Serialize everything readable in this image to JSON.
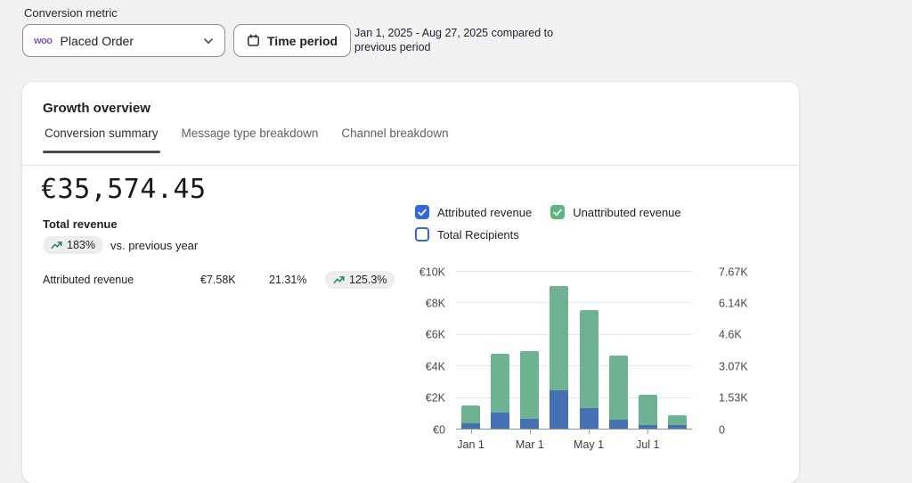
{
  "colors": {
    "page_bg": "#f0f1f3",
    "accent_checkbox_blue": "#3767e0",
    "accent_checkbox_green": "#5cb57f",
    "bar_blue": "#4471b5",
    "bar_green": "#6db392",
    "trend_green": "#148a4d"
  },
  "toolbar": {
    "label": "Conversion metric",
    "metric_dropdown": {
      "badge": "woo",
      "value": "Placed Order"
    },
    "time_period_button": "Time period",
    "date_range": "Jan 1, 2025 - Aug 27, 2025 compared to previous period"
  },
  "card": {
    "title": "Growth overview",
    "tabs": [
      {
        "label": "Conversion summary"
      },
      {
        "label": "Message type breakdown"
      },
      {
        "label": "Channel breakdown"
      }
    ],
    "summary": {
      "total_value": "€35,574.45",
      "total_label": "Total revenue",
      "change_pct": "183%",
      "change_context": "vs. previous year",
      "metric_row": {
        "label": "Attributed revenue",
        "value": "€7.58K",
        "pct": "21.31%",
        "change": "125.3%"
      }
    },
    "legend": [
      {
        "label": "Attributed revenue",
        "checked": true,
        "color": "#3767e0"
      },
      {
        "label": "Unattributed revenue",
        "checked": true,
        "color": "#5cb57f"
      },
      {
        "label": "Total Recipients",
        "checked": false,
        "color": "#3767e0"
      }
    ]
  },
  "chart_data": {
    "type": "bar",
    "stacked": true,
    "title": "",
    "xlabel": "",
    "ylabel": "",
    "categories": [
      "Jan 1",
      "Feb 1",
      "Mar 1",
      "Apr 1",
      "May 1",
      "Jun 1",
      "Jul 1",
      "Aug 1"
    ],
    "series": [
      {
        "name": "Attributed revenue",
        "color": "#4471b5",
        "values": [
          400,
          1100,
          700,
          2500,
          1350,
          600,
          300,
          300
        ]
      },
      {
        "name": "Unattributed revenue",
        "color": "#6db392",
        "values": [
          1100,
          3700,
          4300,
          6600,
          6200,
          4100,
          1900,
          600
        ]
      }
    ],
    "ylim": [
      0,
      10000
    ],
    "y_left": {
      "ticks": [
        "€0",
        "€2K",
        "€4K",
        "€6K",
        "€8K",
        "€10K"
      ]
    },
    "y_right": {
      "ticks": [
        "0",
        "1.53K",
        "3.07K",
        "4.6K",
        "6.14K",
        "7.67K"
      ]
    },
    "x_tick_labels": [
      "Jan 1",
      "Mar 1",
      "May 1",
      "Jul 1"
    ],
    "x_tick_indices": [
      0,
      2,
      4,
      6
    ],
    "grid": true,
    "legend_position": "top"
  }
}
